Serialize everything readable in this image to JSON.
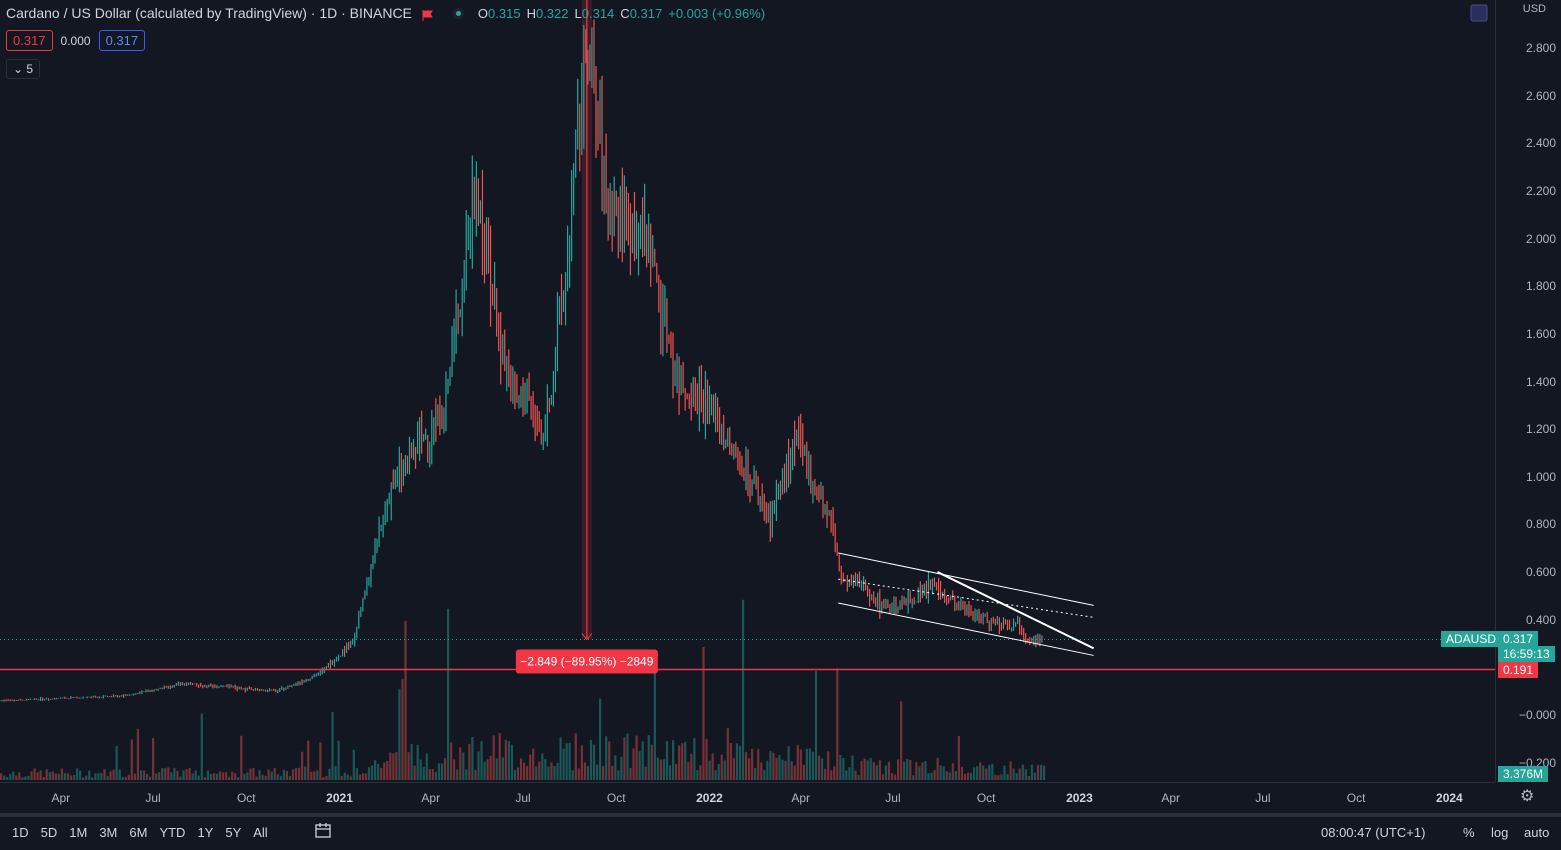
{
  "header": {
    "title": "Cardano / US Dollar (calculated by TradingView) · 1D · BINANCE",
    "ohlc": [
      {
        "label": "O",
        "value": "0.315"
      },
      {
        "label": "H",
        "value": "0.322"
      },
      {
        "label": "L",
        "value": "0.314"
      },
      {
        "label": "C",
        "value": "0.317"
      },
      {
        "label": "",
        "value": "+0.003 (+0.96%)"
      }
    ]
  },
  "trade": {
    "sell": "0.317",
    "spread": "0.000",
    "buy": "0.317"
  },
  "indicators_toggle": "5",
  "price_axis": {
    "currency": "USD",
    "ticks": [
      "2.800",
      "2.600",
      "2.400",
      "2.200",
      "2.000",
      "1.800",
      "1.600",
      "1.400",
      "1.200",
      "1.000",
      "0.800",
      "0.600",
      "0.400",
      "−0.000",
      "−0.200"
    ],
    "symbol_tag": "ADAUSD",
    "last_price": "0.317",
    "countdown": "16:59:13",
    "hline_price": "0.191",
    "volume_label": "3.376M"
  },
  "time_axis": {
    "ticks": [
      {
        "label": "Apr",
        "year": false
      },
      {
        "label": "Jul",
        "year": false
      },
      {
        "label": "Oct",
        "year": false
      },
      {
        "label": "2021",
        "year": true
      },
      {
        "label": "Apr",
        "year": false
      },
      {
        "label": "Jul",
        "year": false
      },
      {
        "label": "Oct",
        "year": false
      },
      {
        "label": "2022",
        "year": true
      },
      {
        "label": "Apr",
        "year": false
      },
      {
        "label": "Jul",
        "year": false
      },
      {
        "label": "Oct",
        "year": false
      },
      {
        "label": "2023",
        "year": true
      },
      {
        "label": "Apr",
        "year": false
      },
      {
        "label": "Jul",
        "year": false
      },
      {
        "label": "Oct",
        "year": false
      },
      {
        "label": "2024",
        "year": true
      }
    ]
  },
  "measure_label": "−2.849 (−89.95%) −2849",
  "bottom_bar": {
    "ranges": [
      "1D",
      "5D",
      "1M",
      "3M",
      "6M",
      "YTD",
      "1Y",
      "5Y",
      "All"
    ],
    "clock": "08:00:47 (UTC+1)",
    "percent": "%",
    "log": "log",
    "auto": "auto"
  },
  "colors": {
    "up": "#26a69a",
    "down": "#ef5350",
    "hline": "#f23645",
    "bg": "#131722"
  },
  "chart_data": {
    "type": "line",
    "title": "Cardano / US Dollar (calculated by TradingView) · 1D · BINANCE",
    "xlabel": "",
    "ylabel": "",
    "ylim": [
      -0.25,
      2.95
    ],
    "x_range": [
      "2020-02-01",
      "2024-02-15"
    ],
    "series": [
      {
        "x": [
          "2020-02-01",
          "2020-06-01",
          "2020-08-01",
          "2020-11-01",
          "2020-12-15",
          "2021-01-15",
          "2021-02-20",
          "2021-03-15",
          "2021-04-15",
          "2021-05-16",
          "2021-06-01",
          "2021-06-22",
          "2021-07-05",
          "2021-07-20",
          "2021-08-10",
          "2021-09-02",
          "2021-09-20",
          "2021-10-01",
          "2021-11-01",
          "2021-12-01",
          "2022-01-01",
          "2022-01-24",
          "2022-02-10",
          "2022-03-01",
          "2022-03-28",
          "2022-05-01",
          "2022-05-12",
          "2022-06-01",
          "2022-06-18",
          "2022-07-15",
          "2022-08-10",
          "2022-09-01",
          "2022-10-01",
          "2022-11-01",
          "2022-11-10",
          "2022-11-26"
        ],
        "values": [
          0.06,
          0.08,
          0.13,
          0.1,
          0.18,
          0.32,
          0.95,
          1.1,
          1.3,
          2.25,
          1.75,
          1.3,
          1.35,
          1.15,
          1.75,
          2.85,
          2.2,
          2.1,
          2.0,
          1.4,
          1.3,
          1.1,
          1.0,
          0.82,
          1.15,
          0.8,
          0.55,
          0.55,
          0.46,
          0.47,
          0.55,
          0.46,
          0.4,
          0.38,
          0.33,
          0.317
        ]
      }
    ],
    "hline": 0.191,
    "measure": {
      "from_date": "2021-09-02",
      "from": 3.166,
      "to": 0.317
    },
    "channel": {
      "start_date": "2022-05-08",
      "end_date": "2023-01-15",
      "upper": [
        0.68,
        0.46
      ],
      "middle": [
        0.57,
        0.41
      ],
      "lower": [
        0.47,
        0.25
      ]
    },
    "trendline": {
      "start_date": "2022-08-14",
      "end_date": "2023-01-15",
      "from": 0.6,
      "to": 0.28
    }
  }
}
